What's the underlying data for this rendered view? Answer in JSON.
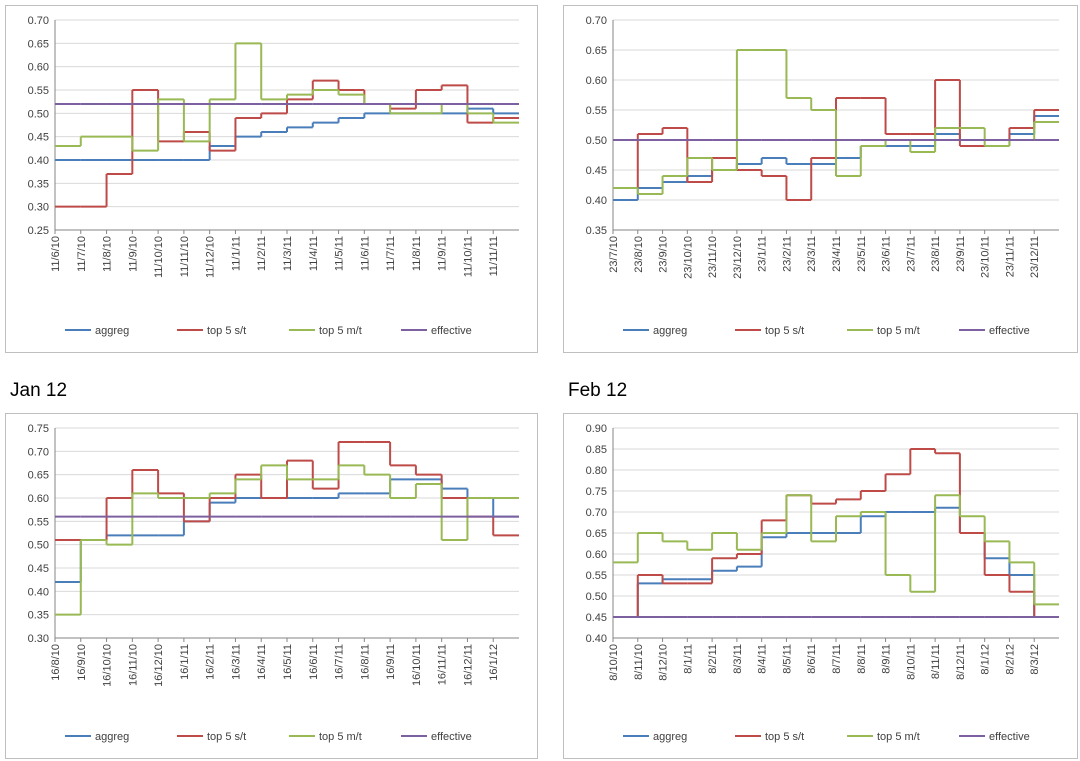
{
  "chart_data": [
    {
      "type": "line",
      "categories": [
        "11/6/10",
        "11/7/10",
        "11/8/10",
        "11/9/10",
        "11/10/10",
        "11/11/10",
        "11/12/10",
        "11/1/11",
        "11/2/11",
        "11/3/11",
        "11/4/11",
        "11/5/11",
        "11/6/11",
        "11/7/11",
        "11/8/11",
        "11/9/11",
        "11/10/11",
        "11/11/11"
      ],
      "ylim": [
        0.25,
        0.7
      ],
      "yticks": [
        0.25,
        {
          "value": 0.3,
          "label": "0.30"
        },
        0.35,
        {
          "value": 0.4,
          "label": "0.40"
        },
        0.45,
        {
          "value": 0.5,
          "label": "0.50"
        },
        0.55,
        {
          "value": 0.6,
          "label": "0.60"
        },
        0.65,
        {
          "value": 0.7,
          "label": "0.70"
        }
      ],
      "grid": true,
      "legend": "bottom",
      "series": [
        {
          "name": "aggreg",
          "color": "#4a7ebb",
          "values": [
            0.4,
            0.4,
            0.4,
            0.4,
            0.4,
            0.4,
            0.43,
            0.45,
            0.46,
            0.47,
            0.48,
            0.49,
            0.5,
            0.5,
            0.5,
            0.5,
            0.51,
            0.5
          ]
        },
        {
          "name": "top 5 s/t",
          "color": "#be4b48",
          "values": [
            0.3,
            0.3,
            0.37,
            0.55,
            0.44,
            0.46,
            0.42,
            0.49,
            0.5,
            0.53,
            0.57,
            0.55,
            0.52,
            0.51,
            0.55,
            0.56,
            0.48,
            0.49
          ]
        },
        {
          "name": "top 5 m/t",
          "color": "#98b954",
          "values": [
            0.43,
            0.45,
            0.45,
            0.42,
            0.53,
            0.44,
            0.53,
            0.65,
            0.53,
            0.54,
            0.55,
            0.54,
            0.52,
            0.5,
            0.5,
            0.52,
            0.5,
            0.48
          ]
        },
        {
          "name": "effective",
          "color": "#7d60a0",
          "values": [
            0.52,
            0.52,
            0.52,
            0.52,
            0.52,
            0.52,
            0.52,
            0.52,
            0.52,
            0.52,
            0.52,
            0.52,
            0.52,
            0.52,
            0.52,
            0.52,
            0.52,
            0.52
          ]
        }
      ]
    },
    {
      "type": "line",
      "categories": [
        "23/7/10",
        "23/8/10",
        "23/9/10",
        "23/10/10",
        "23/11/10",
        "23/12/10",
        "23/1/11",
        "23/2/11",
        "23/3/11",
        "23/4/11",
        "23/5/11",
        "23/6/11",
        "23/7/11",
        "23/8/11",
        "23/9/11",
        "23/10/11",
        "23/11/11",
        "23/12/11"
      ],
      "ylim": [
        0.35,
        0.7
      ],
      "yticks": [
        0.35,
        {
          "value": 0.4,
          "label": "0.40"
        },
        0.45,
        {
          "value": 0.5,
          "label": "0.50"
        },
        0.55,
        {
          "value": 0.6,
          "label": "0.60"
        },
        0.65,
        {
          "value": 0.7,
          "label": "0.70"
        }
      ],
      "grid": true,
      "legend": "bottom",
      "series": [
        {
          "name": "aggreg",
          "color": "#4a7ebb",
          "values": [
            0.4,
            0.42,
            0.43,
            0.44,
            0.45,
            0.46,
            0.47,
            0.46,
            0.46,
            0.47,
            0.49,
            0.49,
            0.49,
            0.51,
            0.5,
            0.5,
            0.51,
            0.54
          ]
        },
        {
          "name": "top 5 s/t",
          "color": "#be4b48",
          "values": [
            0.42,
            0.51,
            0.52,
            0.43,
            0.47,
            0.45,
            0.44,
            0.4,
            0.47,
            0.57,
            0.57,
            0.51,
            0.51,
            0.6,
            0.49,
            0.49,
            0.52,
            0.55
          ]
        },
        {
          "name": "top 5 m/t",
          "color": "#98b954",
          "values": [
            0.42,
            0.41,
            0.44,
            0.47,
            0.45,
            0.65,
            0.65,
            0.57,
            0.55,
            0.44,
            0.49,
            0.5,
            0.48,
            0.52,
            0.52,
            0.49,
            0.5,
            0.53
          ]
        },
        {
          "name": "effective",
          "color": "#7d60a0",
          "values": [
            0.5,
            0.5,
            0.5,
            0.5,
            0.5,
            0.5,
            0.5,
            0.5,
            0.5,
            0.5,
            0.5,
            0.5,
            0.5,
            0.5,
            0.5,
            0.5,
            0.5,
            0.5
          ]
        }
      ]
    },
    {
      "type": "line",
      "caption": "Jan 12",
      "categories": [
        "16/8/10",
        "16/9/10",
        "16/10/10",
        "16/11/10",
        "16/12/10",
        "16/1/11",
        "16/2/11",
        "16/3/11",
        "16/4/11",
        "16/5/11",
        "16/6/11",
        "16/7/11",
        "16/8/11",
        "16/9/11",
        "16/10/11",
        "16/11/11",
        "16/12/11",
        "16/1/12"
      ],
      "ylim": [
        0.3,
        0.75
      ],
      "yticks": [
        {
          "value": 0.3,
          "label": "0.30"
        },
        0.35,
        {
          "value": 0.4,
          "label": "0.40"
        },
        0.45,
        {
          "value": 0.5,
          "label": "0.50"
        },
        0.55,
        {
          "value": 0.6,
          "label": "0.60"
        },
        0.65,
        {
          "value": 0.7,
          "label": "0.70"
        },
        0.75
      ],
      "grid": true,
      "legend": "bottom",
      "series": [
        {
          "name": "aggreg",
          "color": "#4a7ebb",
          "values": [
            0.42,
            0.51,
            0.52,
            0.52,
            0.52,
            0.55,
            0.59,
            0.6,
            0.6,
            0.6,
            0.6,
            0.61,
            0.61,
            0.64,
            0.64,
            0.62,
            0.6,
            0.56
          ]
        },
        {
          "name": "top 5 s/t",
          "color": "#be4b48",
          "values": [
            0.51,
            0.51,
            0.6,
            0.66,
            0.61,
            0.55,
            0.6,
            0.65,
            0.6,
            0.68,
            0.62,
            0.72,
            0.72,
            0.67,
            0.65,
            0.6,
            0.56,
            0.52
          ]
        },
        {
          "name": "top 5 m/t",
          "color": "#98b954",
          "values": [
            0.35,
            0.51,
            0.5,
            0.61,
            0.6,
            0.6,
            0.61,
            0.64,
            0.67,
            0.64,
            0.64,
            0.67,
            0.65,
            0.6,
            0.63,
            0.51,
            0.6,
            0.6
          ]
        },
        {
          "name": "effective",
          "color": "#7d60a0",
          "values": [
            0.56,
            0.56,
            0.56,
            0.56,
            0.56,
            0.56,
            0.56,
            0.56,
            0.56,
            0.56,
            0.56,
            0.56,
            0.56,
            0.56,
            0.56,
            0.56,
            0.56,
            0.56
          ]
        }
      ]
    },
    {
      "type": "line",
      "caption": "Feb 12",
      "categories": [
        "8/10/10",
        "8/11/10",
        "8/12/10",
        "8/1/11",
        "8/2/11",
        "8/3/11",
        "8/4/11",
        "8/5/11",
        "8/6/11",
        "8/7/11",
        "8/8/11",
        "8/9/11",
        "8/10/11",
        "8/11/11",
        "8/12/11",
        "8/1/12",
        "8/2/12",
        "8/3/12"
      ],
      "ylim": [
        0.4,
        0.9
      ],
      "yticks": [
        {
          "value": 0.4,
          "label": "0.40"
        },
        0.45,
        {
          "value": 0.5,
          "label": "0.50"
        },
        0.55,
        {
          "value": 0.6,
          "label": "0.60"
        },
        0.65,
        {
          "value": 0.7,
          "label": "0.70"
        },
        0.75,
        {
          "value": 0.8,
          "label": "0.80"
        },
        0.85,
        {
          "value": 0.9,
          "label": "0.90"
        }
      ],
      "grid": true,
      "legend": "bottom",
      "series": [
        {
          "name": "aggreg",
          "color": "#4a7ebb",
          "values": [
            0.45,
            0.53,
            0.54,
            0.54,
            0.56,
            0.57,
            0.64,
            0.65,
            0.65,
            0.65,
            0.69,
            0.7,
            0.7,
            0.71,
            0.65,
            0.59,
            0.55,
            0.45
          ]
        },
        {
          "name": "top 5 s/t",
          "color": "#be4b48",
          "values": [
            0.45,
            0.55,
            0.53,
            0.53,
            0.59,
            0.6,
            0.68,
            0.74,
            0.72,
            0.73,
            0.75,
            0.79,
            0.85,
            0.84,
            0.65,
            0.55,
            0.51,
            0.45
          ]
        },
        {
          "name": "top 5 m/t",
          "color": "#98b954",
          "values": [
            0.58,
            0.65,
            0.63,
            0.61,
            0.65,
            0.61,
            0.65,
            0.74,
            0.63,
            0.69,
            0.7,
            0.55,
            0.51,
            0.74,
            0.69,
            0.63,
            0.58,
            0.48
          ]
        },
        {
          "name": "effective",
          "color": "#7d60a0",
          "values": [
            0.45,
            0.45,
            0.45,
            0.45,
            0.45,
            0.45,
            0.45,
            0.45,
            0.45,
            0.45,
            0.45,
            0.45,
            0.45,
            0.45,
            0.45,
            0.45,
            0.45,
            0.45
          ]
        }
      ]
    }
  ]
}
